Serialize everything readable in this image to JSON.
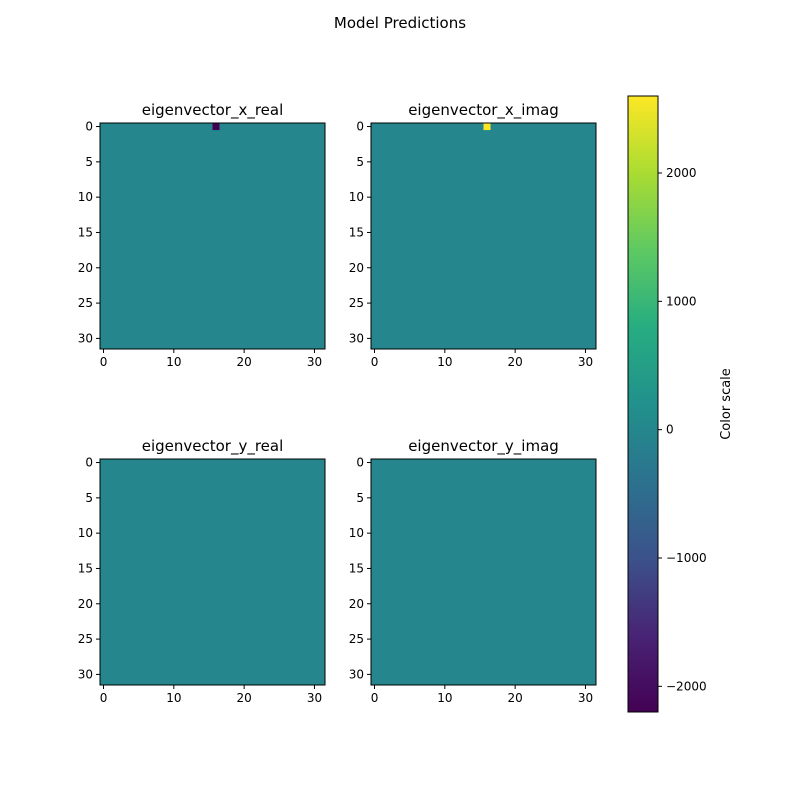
{
  "figure": {
    "suptitle": "Model Predictions"
  },
  "chart_data": [
    {
      "type": "heatmap",
      "title": "eigenvector_x_real",
      "shape": [
        32,
        32
      ],
      "background_value": 0,
      "hot_cells": [
        {
          "row": 0,
          "col": 16,
          "value": -2200
        }
      ],
      "xticks": [
        0,
        10,
        20,
        30
      ],
      "yticks": [
        0,
        5,
        10,
        15,
        20,
        25,
        30
      ]
    },
    {
      "type": "heatmap",
      "title": "eigenvector_x_imag",
      "shape": [
        32,
        32
      ],
      "background_value": 0,
      "hot_cells": [
        {
          "row": 0,
          "col": 16,
          "value": 2600
        }
      ],
      "xticks": [
        0,
        10,
        20,
        30
      ],
      "yticks": [
        0,
        5,
        10,
        15,
        20,
        25,
        30
      ]
    },
    {
      "type": "heatmap",
      "title": "eigenvector_y_real",
      "shape": [
        32,
        32
      ],
      "background_value": 0,
      "hot_cells": [],
      "xticks": [
        0,
        10,
        20,
        30
      ],
      "yticks": [
        0,
        5,
        10,
        15,
        20,
        25,
        30
      ]
    },
    {
      "type": "heatmap",
      "title": "eigenvector_y_imag",
      "shape": [
        32,
        32
      ],
      "background_value": 0,
      "hot_cells": [],
      "xticks": [
        0,
        10,
        20,
        30
      ],
      "yticks": [
        0,
        5,
        10,
        15,
        20,
        25,
        30
      ]
    }
  ],
  "colorbar": {
    "label": "Color scale",
    "colormap": "viridis",
    "vmin": -2200,
    "vmax": 2600,
    "ticks": [
      -2000,
      -1000,
      0,
      1000,
      2000
    ],
    "tick_labels": [
      "−2000",
      "−1000",
      "0",
      "1000",
      "2000"
    ]
  }
}
